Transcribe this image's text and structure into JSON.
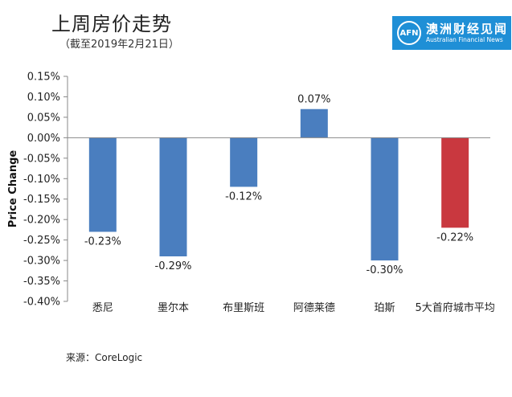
{
  "header": {
    "title": "上周房价走势",
    "subtitle": "（截至2019年2月21日）"
  },
  "logo": {
    "mark": "AFN",
    "name_cn": "澳洲财经见闻",
    "name_en": "Australian Financial News",
    "color": "#1f8fd6"
  },
  "source": "来源：CoreLogic",
  "chart_data": {
    "type": "bar",
    "title": "上周房价走势",
    "xlabel": "",
    "ylabel": "Price Change",
    "ylim": [
      -0.4,
      0.15
    ],
    "yticks": [
      0.15,
      0.1,
      0.05,
      0.0,
      -0.05,
      -0.1,
      -0.15,
      -0.2,
      -0.25,
      -0.3,
      -0.35,
      -0.4
    ],
    "ytick_labels": [
      "0.15%",
      "0.10%",
      "0.05%",
      "0.00%",
      "-0.05%",
      "-0.10%",
      "-0.15%",
      "-0.20%",
      "-0.25%",
      "-0.30%",
      "-0.35%",
      "-0.40%"
    ],
    "categories": [
      "悉尼",
      "墨尔本",
      "布里斯班",
      "阿德莱德",
      "珀斯",
      "5大首府城市平均"
    ],
    "values": [
      -0.23,
      -0.29,
      -0.12,
      0.07,
      -0.3,
      -0.22
    ],
    "data_labels": [
      "-0.23%",
      "-0.29%",
      "-0.12%",
      "0.07%",
      "-0.30%",
      "-0.22%"
    ],
    "colors": [
      "#4a7ebf",
      "#4a7ebf",
      "#4a7ebf",
      "#4a7ebf",
      "#4a7ebf",
      "#c9383f"
    ],
    "grid": true
  }
}
